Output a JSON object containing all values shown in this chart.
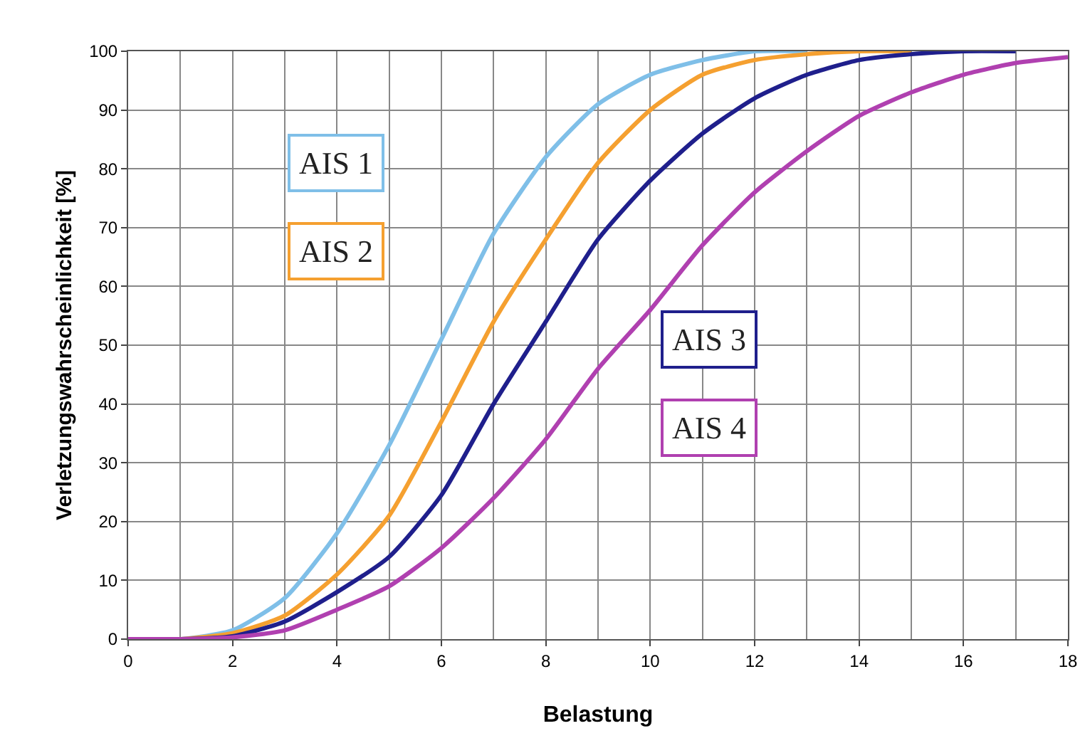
{
  "chart_data": {
    "type": "line",
    "xlabel": "Belastung",
    "ylabel": "Verletzungswahrscheinlichkeit [%]",
    "xlim": [
      0,
      18
    ],
    "xticks": [
      0,
      2,
      4,
      6,
      8,
      10,
      12,
      14,
      16,
      18
    ],
    "ylim": [
      0,
      100
    ],
    "yticks": [
      0,
      10,
      20,
      30,
      40,
      50,
      60,
      70,
      80,
      90,
      100
    ],
    "grid": true,
    "legend": false,
    "marker": "none",
    "line_style": "solid",
    "series": [
      {
        "name": "AIS 1",
        "color": "#7fbfe8",
        "x": [
          0,
          1,
          2,
          3,
          4,
          5,
          6,
          7,
          8,
          9,
          10,
          11,
          12,
          13
        ],
        "values": [
          0,
          0,
          1.5,
          7,
          18,
          33,
          51,
          69,
          82,
          91,
          96,
          98.5,
          100,
          100
        ]
      },
      {
        "name": "AIS 2",
        "color": "#f5a030",
        "x": [
          0,
          1,
          2,
          3,
          4,
          5,
          6,
          7,
          8,
          9,
          10,
          11,
          12,
          13,
          14,
          15
        ],
        "values": [
          0,
          0,
          1,
          4,
          11,
          21,
          37,
          54,
          68,
          81,
          90,
          96,
          98.5,
          99.5,
          100,
          100
        ]
      },
      {
        "name": "AIS 3",
        "color": "#1f1f8c",
        "x": [
          0,
          1,
          2,
          3,
          4,
          5,
          6,
          7,
          8,
          9,
          10,
          11,
          12,
          13,
          14,
          15,
          16,
          17
        ],
        "values": [
          0,
          0,
          0.5,
          3,
          8,
          14,
          24.5,
          40,
          54,
          68,
          78,
          86,
          92,
          96,
          98.5,
          99.5,
          100,
          100
        ]
      },
      {
        "name": "AIS 4",
        "color": "#b040b0",
        "x": [
          0,
          1,
          2,
          3,
          4,
          5,
          6,
          7,
          8,
          9,
          10,
          11,
          12,
          13,
          14,
          15,
          16,
          17,
          18
        ],
        "values": [
          0,
          0,
          0.3,
          1.5,
          5,
          9,
          15.5,
          24,
          34,
          46,
          56,
          67,
          76,
          83,
          89,
          93,
          96,
          98,
          99
        ]
      }
    ]
  }
}
